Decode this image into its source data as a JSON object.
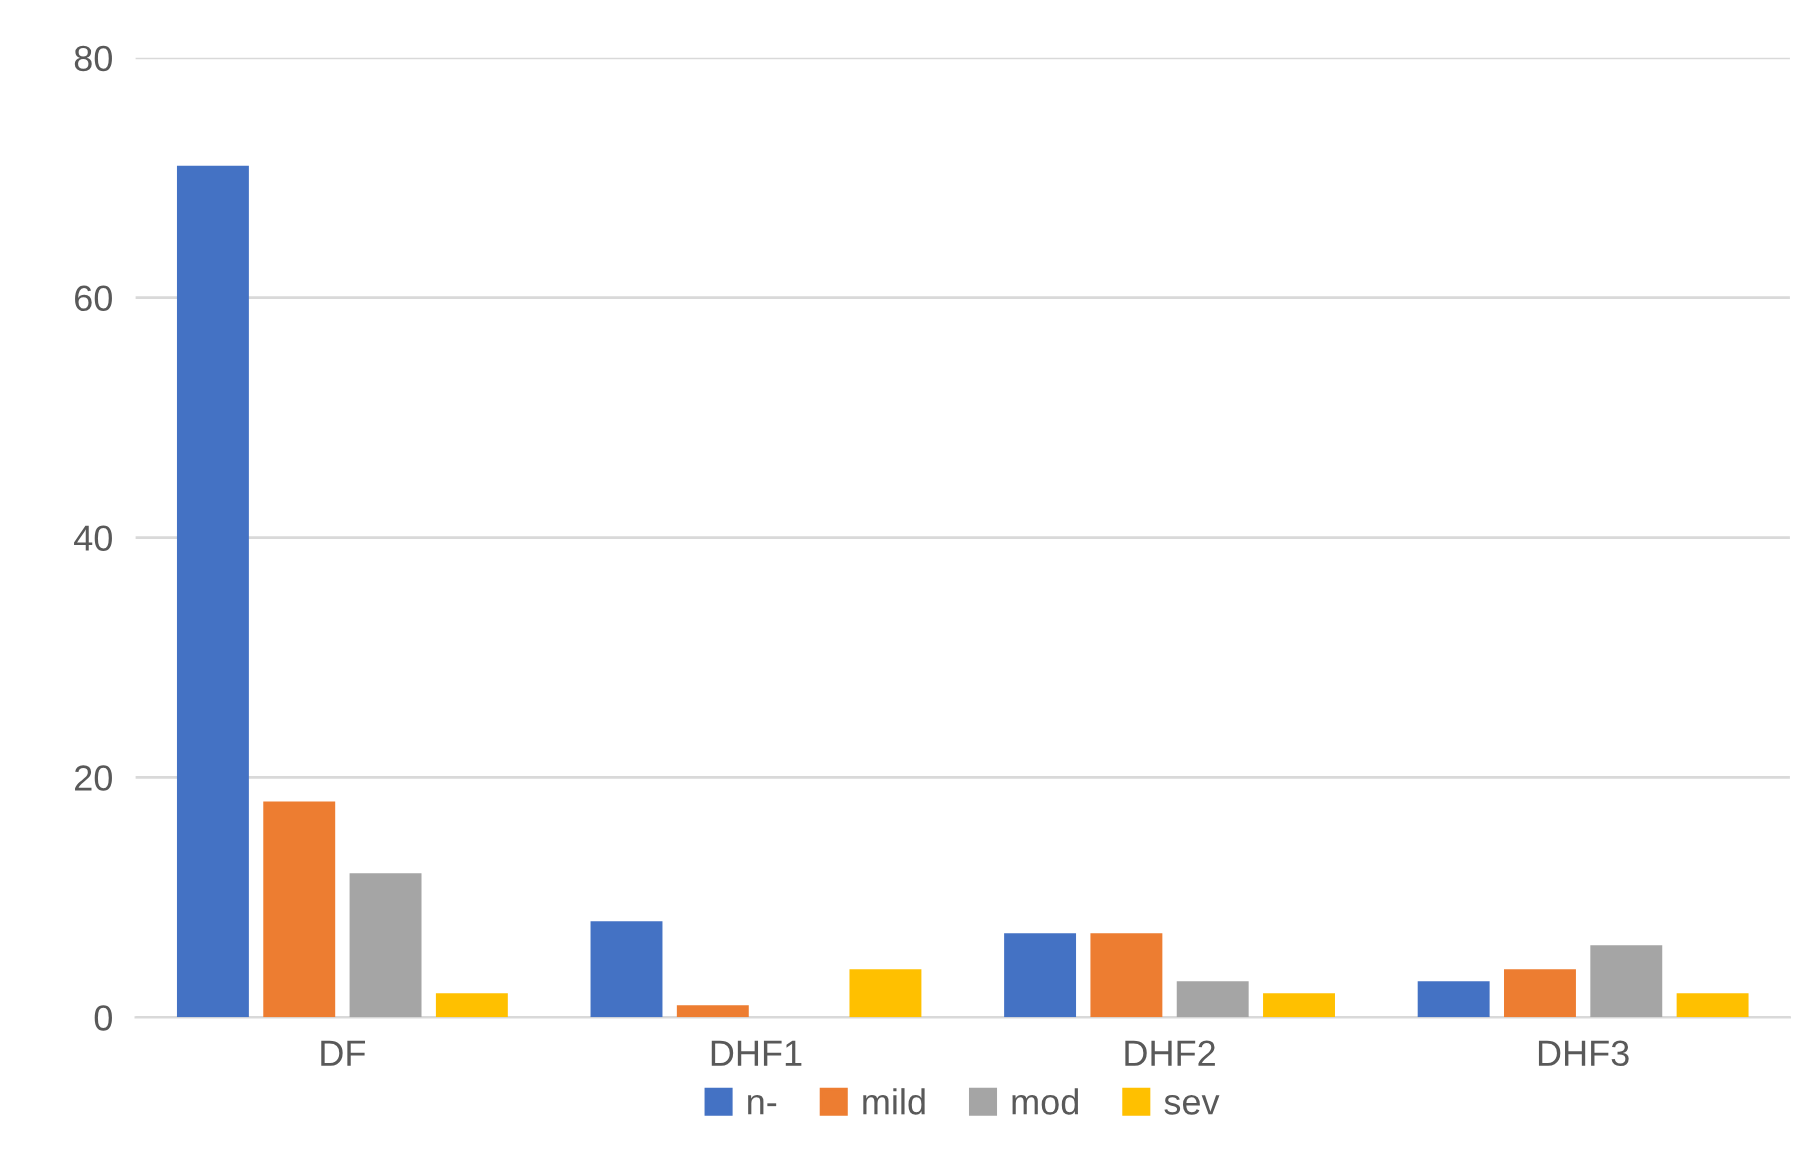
{
  "chart_data": {
    "type": "bar",
    "categories": [
      "DF",
      "DHF1",
      "DHF2",
      "DHF3"
    ],
    "series": [
      {
        "name": "n-",
        "color": "#4472c4",
        "values": [
          71,
          8,
          7,
          3
        ]
      },
      {
        "name": "mild",
        "color": "#ed7d31",
        "values": [
          18,
          1,
          7,
          4
        ]
      },
      {
        "name": "mod",
        "color": "#a5a5a5",
        "values": [
          12,
          0,
          3,
          6
        ]
      },
      {
        "name": "sev",
        "color": "#ffc000",
        "values": [
          2,
          4,
          2,
          2
        ]
      }
    ],
    "ylim": [
      0,
      80
    ],
    "yticks": [
      0,
      20,
      40,
      60,
      80
    ],
    "grid": "y",
    "legend": "bottom"
  }
}
